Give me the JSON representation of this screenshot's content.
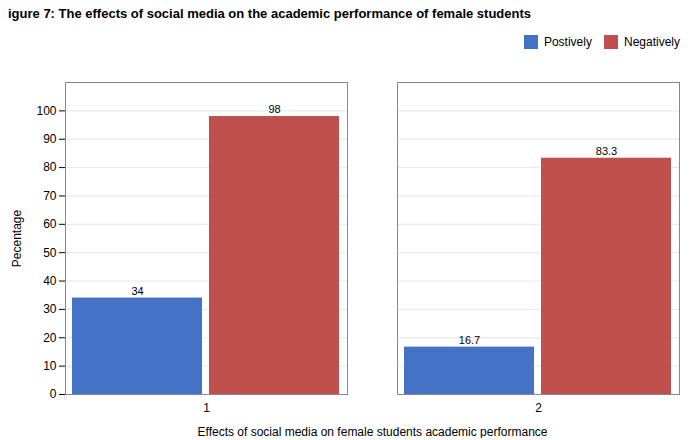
{
  "chart_data": {
    "type": "bar",
    "title": "igure 7:  The effects of social media on the academic performance of female students",
    "xlabel": "Effects of social media on female students academic performance",
    "ylabel": "Pecentage",
    "categories": [
      "1",
      "2"
    ],
    "series": [
      {
        "name": "Postively",
        "color": "#4472C4",
        "values": [
          34,
          16.7
        ]
      },
      {
        "name": "Negatively",
        "color": "#C0504D",
        "values": [
          98,
          83.3
        ]
      }
    ],
    "ylim": [
      0,
      110
    ],
    "yticks": [
      0,
      10,
      20,
      30,
      40,
      50,
      60,
      70,
      80,
      90,
      100
    ],
    "grid": true,
    "legend": "upper right",
    "data_labels": true
  }
}
